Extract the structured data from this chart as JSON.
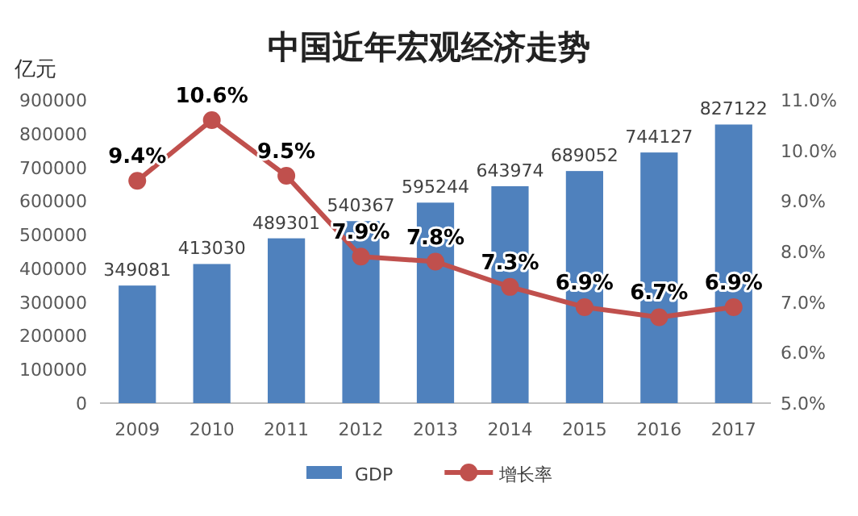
{
  "chart_data": {
    "type": "bar",
    "title": "中国近年宏观经济走势",
    "ylabel": "亿元",
    "categories": [
      "2009",
      "2010",
      "2011",
      "2012",
      "2013",
      "2014",
      "2015",
      "2016",
      "2017"
    ],
    "series": [
      {
        "name": "GDP",
        "color": "#4f81bd",
        "values": [
          349081,
          413030,
          489301,
          540367,
          595244,
          643974,
          689052,
          744127,
          827122
        ]
      },
      {
        "name": "增长率",
        "type": "line",
        "axis": "y2",
        "color": "#c0504d",
        "marker": "circle",
        "values": [
          9.4,
          10.6,
          9.5,
          7.9,
          7.8,
          7.3,
          6.9,
          6.7,
          6.9
        ],
        "value_labels": [
          "9.4%",
          "10.6%",
          "9.5%",
          "7.9%",
          "7.8%",
          "7.3%",
          "6.9%",
          "6.7%",
          "6.9%"
        ]
      }
    ],
    "data_labels": true,
    "ylim": [
      0,
      900000
    ],
    "yticks": [
      0,
      100000,
      200000,
      300000,
      400000,
      500000,
      600000,
      700000,
      800000,
      900000
    ],
    "y2lim": [
      5,
      11
    ],
    "y2ticks": [
      {
        "value": 5,
        "label": "5.0%"
      },
      {
        "value": 6,
        "label": "6.0%"
      },
      {
        "value": 7,
        "label": "7.0%"
      },
      {
        "value": 8,
        "label": "8.0%"
      },
      {
        "value": 9,
        "label": "9.0%"
      },
      {
        "value": 10,
        "label": "10.0%"
      },
      {
        "value": 11,
        "label": "11.0%"
      }
    ],
    "grid": false,
    "legend": "bottom"
  }
}
